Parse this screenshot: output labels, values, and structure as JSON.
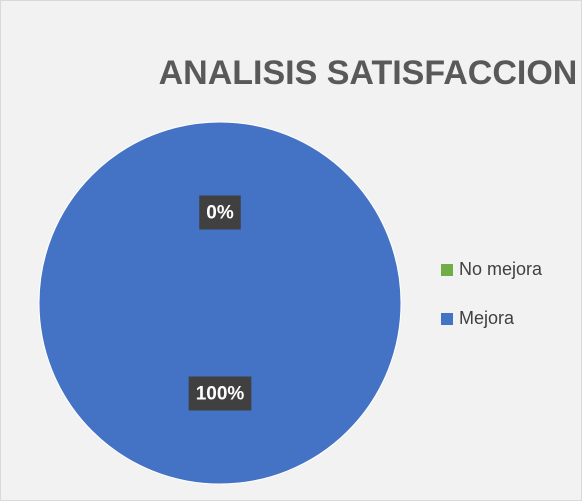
{
  "chart_data": {
    "type": "pie",
    "title": "ANALISIS SATISFACCION",
    "categories": [
      "No mejora",
      "Mejora"
    ],
    "values": [
      0,
      100
    ],
    "value_labels": [
      "0%",
      "100%"
    ],
    "colors": [
      "#70ad47",
      "#4472c4"
    ],
    "legend": "right"
  }
}
